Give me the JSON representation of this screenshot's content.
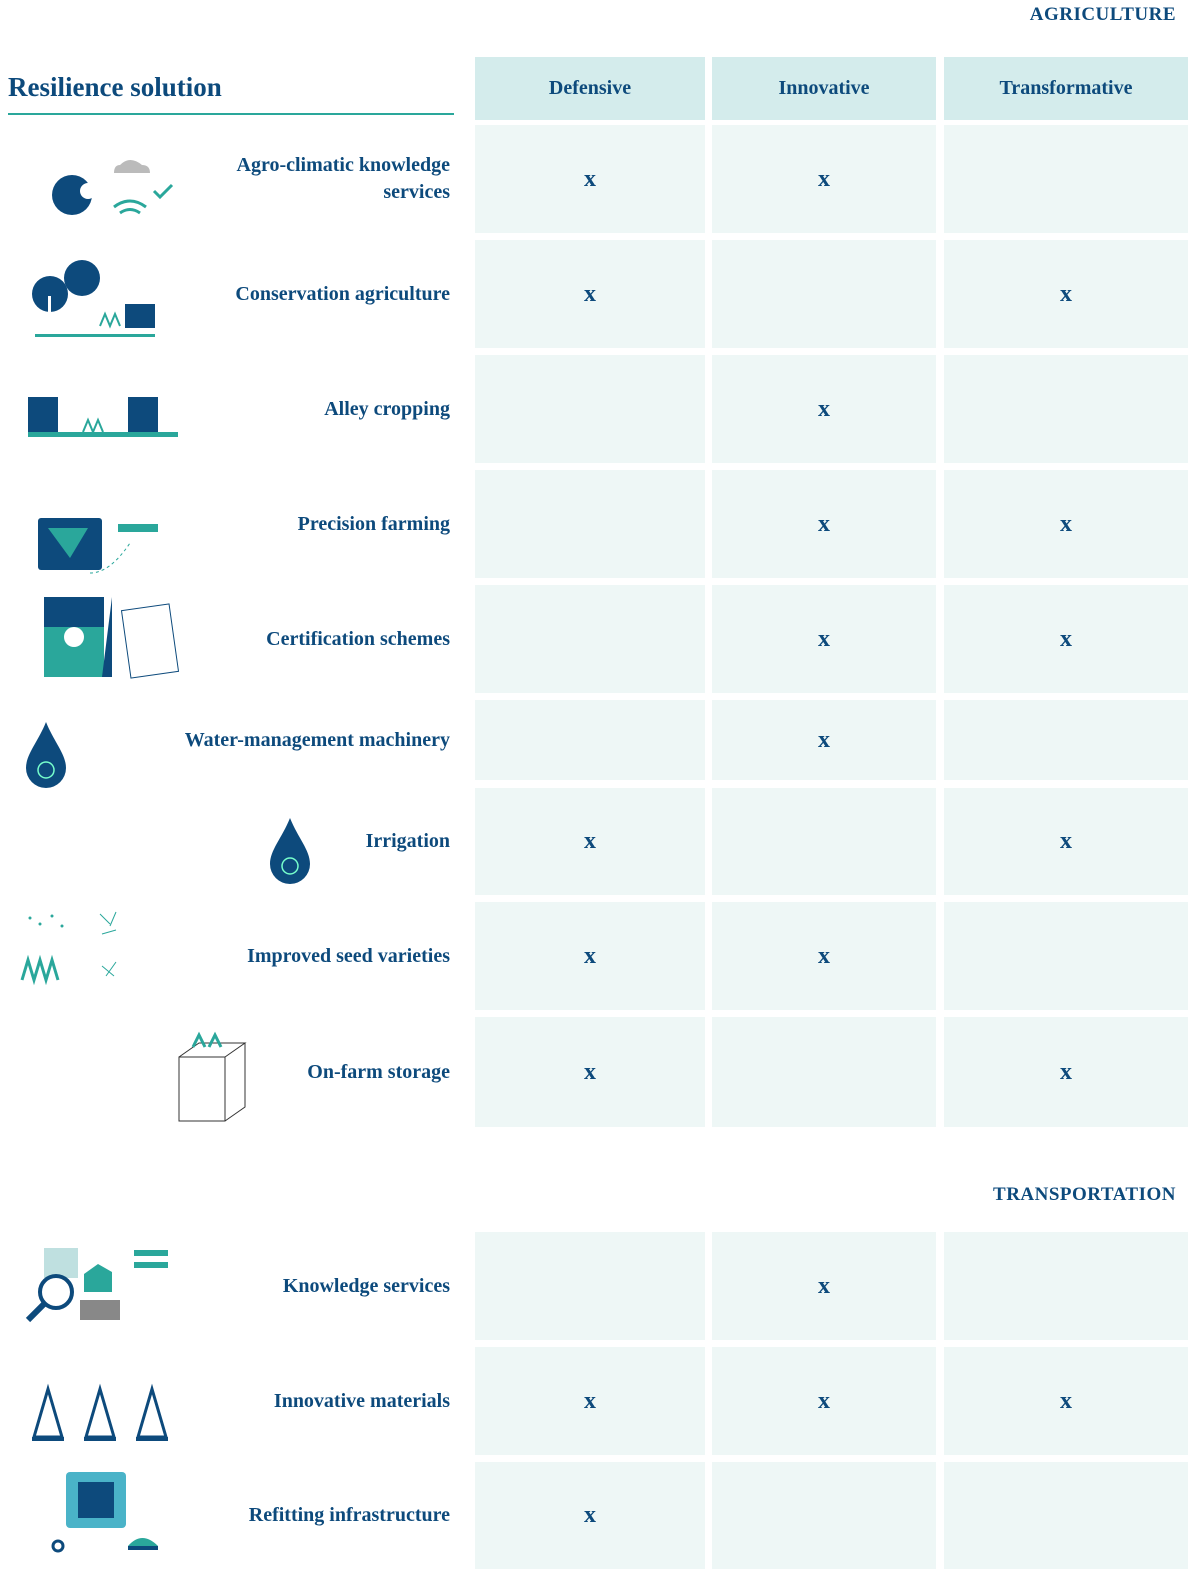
{
  "header": {
    "title": "Resilience solution",
    "columns": [
      "Defensive",
      "Innovative",
      "Transformative"
    ]
  },
  "sections": [
    {
      "title": "AGRICULTURE",
      "rows": [
        {
          "label": "Agro-climatic knowledge services",
          "cells": [
            "x",
            "x",
            null
          ]
        },
        {
          "label": "Conservation agriculture",
          "cells": [
            "x",
            null,
            "x"
          ]
        },
        {
          "label": "Alley cropping",
          "cells": [
            null,
            "x",
            null
          ]
        },
        {
          "label": "Precision farming",
          "cells": [
            null,
            "x",
            "x"
          ]
        },
        {
          "label": "Certification schemes",
          "cells": [
            null,
            "x",
            "x"
          ]
        },
        {
          "label": "Water-management machinery",
          "cells": [
            null,
            "x",
            null
          ]
        },
        {
          "label": "Irrigation",
          "cells": [
            "x",
            null,
            "x"
          ]
        },
        {
          "label": "Improved seed varieties",
          "cells": [
            "x",
            "x",
            null
          ]
        },
        {
          "label": "On-farm storage",
          "cells": [
            "x",
            null,
            "x"
          ]
        }
      ]
    },
    {
      "title": "TRANSPORTATION",
      "rows": [
        {
          "label": "Knowledge services",
          "cells": [
            null,
            "x",
            null
          ]
        },
        {
          "label": "Innovative materials",
          "cells": [
            "x",
            "x",
            "x"
          ]
        },
        {
          "label": "Refitting infrastructure",
          "cells": [
            "x",
            null,
            null
          ]
        }
      ]
    }
  ]
}
